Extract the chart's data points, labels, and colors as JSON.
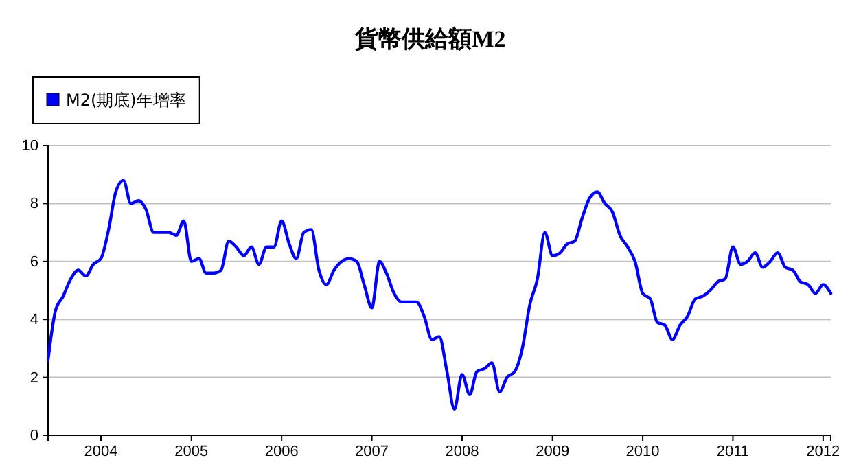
{
  "chart_data": {
    "type": "line",
    "title": "貨幣供給額M2",
    "x": [
      "2003-06",
      "2003-07",
      "2003-08",
      "2003-09",
      "2003-10",
      "2003-11",
      "2003-12",
      "2004-01",
      "2004-02",
      "2004-03",
      "2004-04",
      "2004-05",
      "2004-06",
      "2004-07",
      "2004-08",
      "2004-09",
      "2004-10",
      "2004-11",
      "2004-12",
      "2005-01",
      "2005-02",
      "2005-03",
      "2005-04",
      "2005-05",
      "2005-06",
      "2005-07",
      "2005-08",
      "2005-09",
      "2005-10",
      "2005-11",
      "2005-12",
      "2006-01",
      "2006-02",
      "2006-03",
      "2006-04",
      "2006-05",
      "2006-06",
      "2006-07",
      "2006-08",
      "2006-09",
      "2006-10",
      "2006-11",
      "2006-12",
      "2007-01",
      "2007-02",
      "2007-03",
      "2007-04",
      "2007-05",
      "2007-06",
      "2007-07",
      "2007-08",
      "2007-09",
      "2007-10",
      "2007-11",
      "2007-12",
      "2008-01",
      "2008-02",
      "2008-03",
      "2008-04",
      "2008-05",
      "2008-06",
      "2008-07",
      "2008-08",
      "2008-09",
      "2008-10",
      "2008-11",
      "2008-12",
      "2009-01",
      "2009-02",
      "2009-03",
      "2009-04",
      "2009-05",
      "2009-06",
      "2009-07",
      "2009-08",
      "2009-09",
      "2009-10",
      "2009-11",
      "2009-12",
      "2010-01",
      "2010-02",
      "2010-03",
      "2010-04",
      "2010-05",
      "2010-06",
      "2010-07",
      "2010-08",
      "2010-09",
      "2010-10",
      "2010-11",
      "2010-12",
      "2011-01",
      "2011-02",
      "2011-03",
      "2011-04",
      "2011-05",
      "2011-06",
      "2011-07",
      "2011-08",
      "2011-09",
      "2011-10",
      "2011-11",
      "2011-12",
      "2012-01",
      "2012-02"
    ],
    "series": [
      {
        "name": "M2(期底)年增率",
        "color": "#0000ff",
        "values": [
          2.6,
          4.3,
          4.8,
          5.4,
          5.7,
          5.5,
          5.9,
          6.1,
          7.1,
          8.4,
          8.8,
          8.0,
          8.1,
          7.8,
          7.0,
          7.0,
          7.0,
          6.9,
          7.4,
          6.0,
          6.1,
          5.6,
          5.6,
          5.7,
          6.7,
          6.5,
          6.2,
          6.5,
          5.9,
          6.5,
          6.5,
          7.4,
          6.6,
          6.1,
          7.0,
          7.1,
          5.7,
          5.2,
          5.7,
          6.0,
          6.1,
          6.0,
          5.2,
          4.4,
          6.0,
          5.6,
          4.9,
          4.6,
          4.6,
          4.6,
          4.1,
          3.3,
          3.4,
          2.2,
          0.9,
          2.1,
          1.4,
          2.2,
          2.3,
          2.5,
          1.5,
          2.0,
          2.2,
          3.0,
          4.5,
          5.4,
          7.0,
          6.2,
          6.3,
          6.6,
          6.7,
          7.5,
          8.2,
          8.4,
          8.0,
          7.7,
          6.9,
          6.5,
          6.0,
          4.9,
          4.7,
          3.9,
          3.8,
          3.3,
          3.8,
          4.1,
          4.7,
          4.8,
          5.0,
          5.3,
          5.4,
          6.5,
          5.9,
          6.0,
          6.3,
          5.8,
          6.0,
          6.3,
          5.8,
          5.7,
          5.3,
          5.2,
          4.9,
          5.2,
          4.9
        ]
      }
    ],
    "xlim": [
      "2003-06",
      "2012-02"
    ],
    "xticks": [
      "2004",
      "2005",
      "2006",
      "2007",
      "2008",
      "2009",
      "2010",
      "2011",
      "2012"
    ],
    "ylim": [
      0,
      10
    ],
    "yticks": [
      0,
      2,
      4,
      6,
      8,
      10
    ],
    "grid": "y",
    "legend": "top left",
    "marker": "none",
    "line_style": "solid"
  }
}
